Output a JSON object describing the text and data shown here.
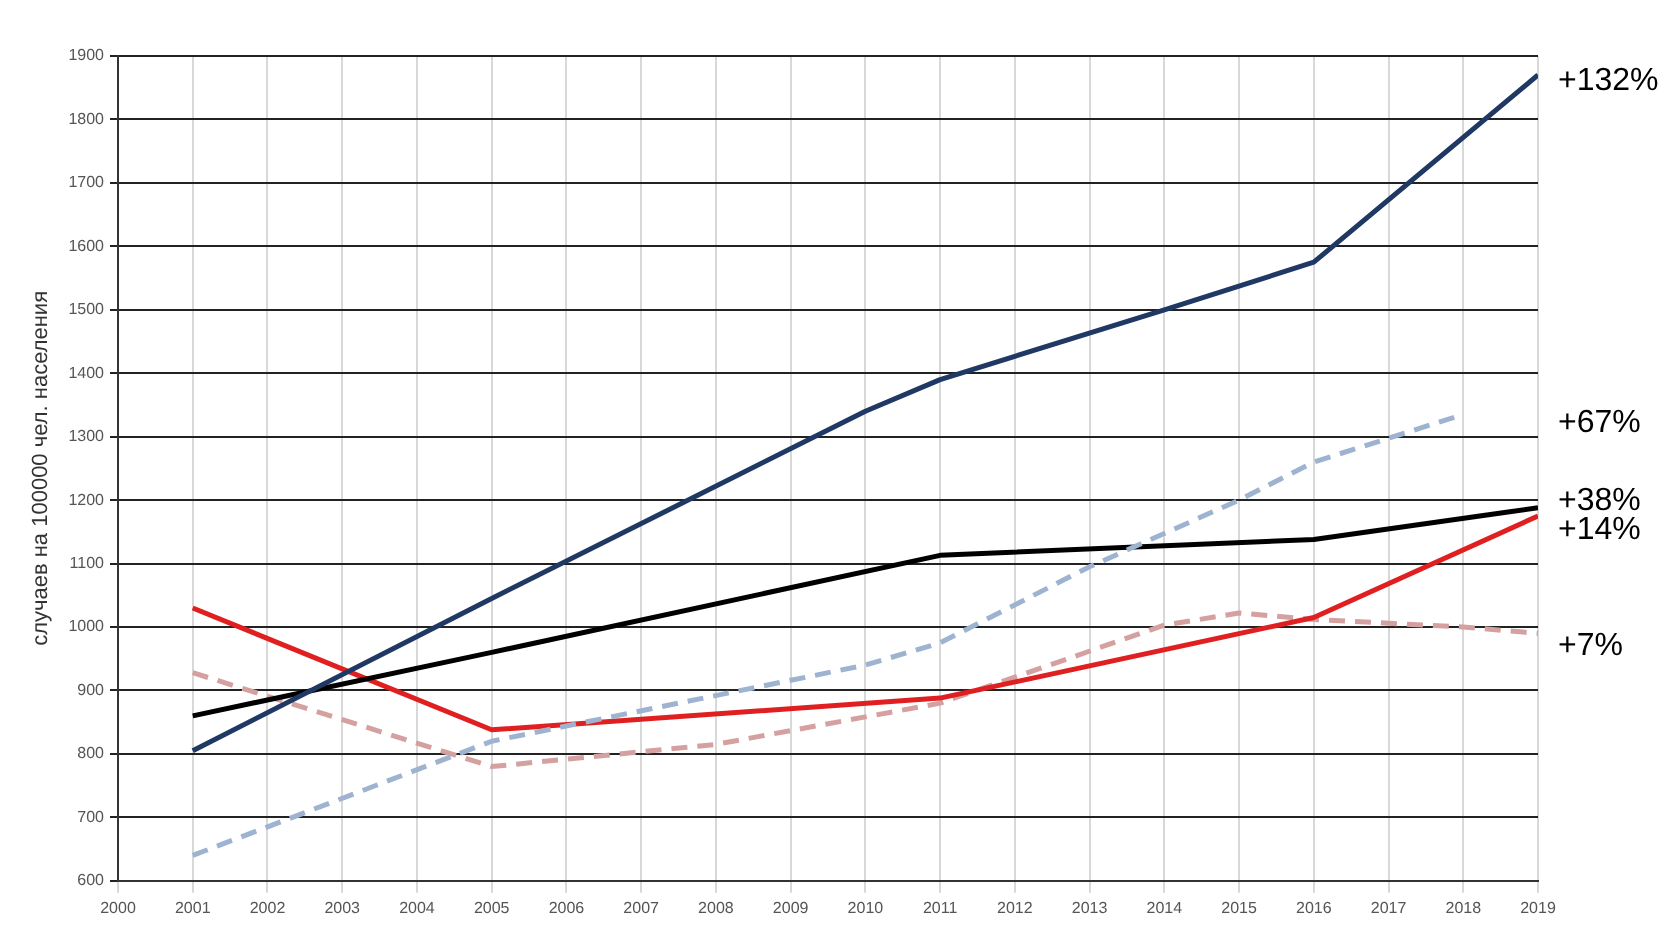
{
  "chart_data": {
    "type": "line",
    "ylabel": "случаев на 100000 чел. населения",
    "xlim": [
      2000,
      2019
    ],
    "xticks": [
      2000,
      2001,
      2002,
      2003,
      2004,
      2005,
      2006,
      2007,
      2008,
      2009,
      2010,
      2011,
      2012,
      2013,
      2014,
      2015,
      2016,
      2017,
      2018,
      2019
    ],
    "ylim": [
      600,
      1900
    ],
    "yticks": [
      600,
      700,
      800,
      900,
      1000,
      1100,
      1200,
      1300,
      1400,
      1500,
      1600,
      1700,
      1800,
      1900
    ],
    "grid": true,
    "legend": false,
    "marker": "none",
    "series": [
      {
        "color": "#1f3864",
        "line_style": "solid",
        "x": [
          2001,
          2005,
          2010,
          2011,
          2014,
          2016,
          2019
        ],
        "values": [
          805,
          1045,
          1340,
          1390,
          1500,
          1575,
          1870
        ]
      },
      {
        "color": "#9db3d0",
        "line_style": "dashed",
        "x": [
          2001,
          2005,
          2010,
          2011,
          2013,
          2015,
          2016,
          2018
        ],
        "values": [
          640,
          820,
          940,
          975,
          1095,
          1200,
          1260,
          1335
        ]
      },
      {
        "color": "#000000",
        "line_style": "solid",
        "x": [
          2001,
          2005,
          2011,
          2016,
          2019
        ],
        "values": [
          860,
          960,
          1113,
          1138,
          1188
        ]
      },
      {
        "color": "#e02020",
        "line_style": "solid",
        "x": [
          2001,
          2005,
          2011,
          2016,
          2019
        ],
        "values": [
          1030,
          838,
          888,
          1015,
          1175
        ]
      },
      {
        "color": "#d4a0a0",
        "line_style": "dashed",
        "x": [
          2001,
          2005,
          2008,
          2011,
          2014,
          2015,
          2016,
          2018,
          2019
        ],
        "values": [
          928,
          780,
          815,
          880,
          1003,
          1022,
          1012,
          1000,
          990
        ]
      }
    ],
    "annotations": [
      "+132%",
      "+67%",
      "+38%",
      "+14%",
      "+7%"
    ]
  }
}
